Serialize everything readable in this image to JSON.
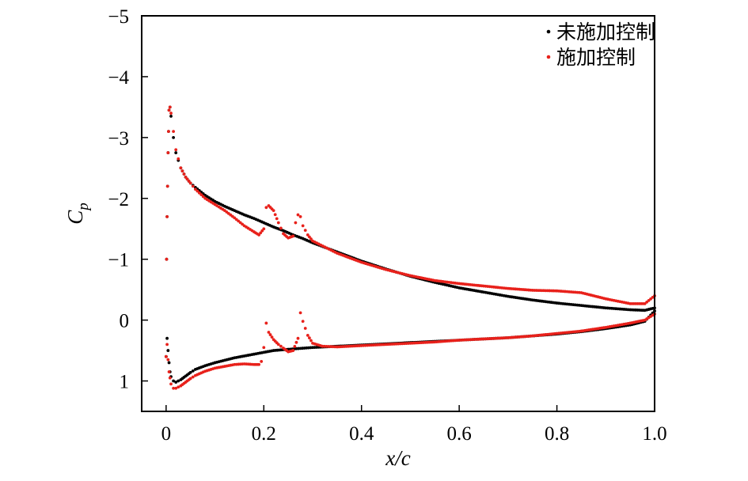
{
  "chart_data": {
    "type": "scatter",
    "title": "",
    "xlabel": "x/c",
    "ylabel_main": "C",
    "ylabel_sub": "p",
    "xlim": [
      -0.05,
      1.0
    ],
    "ylim": [
      1.5,
      -5
    ],
    "y_inverted": true,
    "grid": false,
    "legend_position": "top-right",
    "x_ticks": [
      0,
      0.2,
      0.4,
      0.6,
      0.8,
      1.0
    ],
    "x_tick_labels": [
      "0",
      "0.2",
      "0.4",
      "0.6",
      "0.8",
      "1.0"
    ],
    "y_ticks": [
      -5,
      -4,
      -3,
      -2,
      -1,
      0,
      1
    ],
    "y_tick_labels": [
      "−5",
      "−4",
      "−3",
      "−2",
      "−1",
      "0",
      "1"
    ],
    "series": [
      {
        "name": "未施加控制",
        "color": "#000000",
        "upper": {
          "x": [
            0.0,
            0.001,
            0.002,
            0.003,
            0.004,
            0.005,
            0.006,
            0.008,
            0.01,
            0.015,
            0.02,
            0.03,
            0.04,
            0.05,
            0.06,
            0.08,
            0.1,
            0.12,
            0.14,
            0.16,
            0.18,
            0.2,
            0.22,
            0.24,
            0.26,
            0.28,
            0.3,
            0.35,
            0.4,
            0.45,
            0.5,
            0.55,
            0.6,
            0.65,
            0.7,
            0.75,
            0.8,
            0.85,
            0.9,
            0.95,
            0.98,
            1.0
          ],
          "y": [
            0.6,
            -1.0,
            -1.7,
            -2.2,
            -2.75,
            -3.1,
            -3.45,
            -3.5,
            -3.35,
            -3.0,
            -2.75,
            -2.5,
            -2.35,
            -2.25,
            -2.18,
            -2.05,
            -1.95,
            -1.87,
            -1.8,
            -1.73,
            -1.67,
            -1.6,
            -1.53,
            -1.47,
            -1.4,
            -1.34,
            -1.27,
            -1.12,
            -0.97,
            -0.84,
            -0.72,
            -0.62,
            -0.53,
            -0.46,
            -0.39,
            -0.33,
            -0.28,
            -0.24,
            -0.2,
            -0.17,
            -0.16,
            -0.2
          ]
        },
        "lower": {
          "x": [
            0.0,
            0.002,
            0.004,
            0.006,
            0.008,
            0.01,
            0.015,
            0.02,
            0.03,
            0.04,
            0.05,
            0.06,
            0.08,
            0.1,
            0.12,
            0.14,
            0.16,
            0.18,
            0.2,
            0.22,
            0.25,
            0.3,
            0.35,
            0.4,
            0.45,
            0.5,
            0.55,
            0.6,
            0.65,
            0.7,
            0.75,
            0.8,
            0.85,
            0.9,
            0.95,
            0.98,
            1.0
          ],
          "y": [
            0.6,
            0.3,
            0.5,
            0.7,
            0.85,
            0.93,
            1.0,
            1.02,
            0.98,
            0.92,
            0.86,
            0.81,
            0.75,
            0.7,
            0.66,
            0.62,
            0.59,
            0.56,
            0.53,
            0.5,
            0.48,
            0.45,
            0.43,
            0.41,
            0.39,
            0.37,
            0.35,
            0.33,
            0.31,
            0.29,
            0.26,
            0.23,
            0.19,
            0.14,
            0.08,
            0.02,
            -0.15
          ]
        }
      },
      {
        "name": "施加控制",
        "color": "#e8211b",
        "upper": {
          "x": [
            0.0,
            0.001,
            0.002,
            0.003,
            0.004,
            0.005,
            0.006,
            0.008,
            0.01,
            0.015,
            0.02,
            0.03,
            0.04,
            0.05,
            0.06,
            0.08,
            0.1,
            0.12,
            0.14,
            0.16,
            0.18,
            0.19,
            0.2,
            0.205,
            0.21,
            0.22,
            0.23,
            0.24,
            0.25,
            0.26,
            0.265,
            0.27,
            0.275,
            0.28,
            0.29,
            0.3,
            0.35,
            0.4,
            0.45,
            0.5,
            0.55,
            0.6,
            0.65,
            0.7,
            0.75,
            0.8,
            0.85,
            0.9,
            0.95,
            0.98,
            1.0
          ],
          "y": [
            0.6,
            -1.0,
            -1.7,
            -2.2,
            -2.75,
            -3.1,
            -3.45,
            -3.5,
            -3.4,
            -3.1,
            -2.8,
            -2.5,
            -2.35,
            -2.25,
            -2.15,
            -2.0,
            -1.9,
            -1.8,
            -1.68,
            -1.55,
            -1.45,
            -1.4,
            -1.5,
            -1.85,
            -1.88,
            -1.8,
            -1.6,
            -1.42,
            -1.35,
            -1.38,
            -1.6,
            -1.73,
            -1.7,
            -1.55,
            -1.4,
            -1.3,
            -1.1,
            -0.95,
            -0.83,
            -0.73,
            -0.65,
            -0.6,
            -0.56,
            -0.52,
            -0.49,
            -0.48,
            -0.45,
            -0.35,
            -0.27,
            -0.27,
            -0.4
          ]
        },
        "lower": {
          "x": [
            0.0,
            0.002,
            0.004,
            0.006,
            0.008,
            0.01,
            0.015,
            0.02,
            0.03,
            0.04,
            0.05,
            0.06,
            0.08,
            0.1,
            0.12,
            0.14,
            0.16,
            0.18,
            0.19,
            0.195,
            0.2,
            0.205,
            0.21,
            0.22,
            0.23,
            0.24,
            0.25,
            0.26,
            0.27,
            0.275,
            0.28,
            0.29,
            0.3,
            0.32,
            0.35,
            0.4,
            0.45,
            0.5,
            0.55,
            0.6,
            0.65,
            0.7,
            0.75,
            0.8,
            0.85,
            0.9,
            0.95,
            0.98,
            1.0
          ],
          "y": [
            0.6,
            0.4,
            0.65,
            0.85,
            0.95,
            1.05,
            1.12,
            1.12,
            1.08,
            1.02,
            0.96,
            0.91,
            0.84,
            0.79,
            0.76,
            0.73,
            0.72,
            0.73,
            0.73,
            0.68,
            0.45,
            0.05,
            0.2,
            0.32,
            0.4,
            0.46,
            0.52,
            0.5,
            0.3,
            -0.12,
            0.02,
            0.25,
            0.38,
            0.43,
            0.44,
            0.42,
            0.4,
            0.38,
            0.36,
            0.33,
            0.31,
            0.29,
            0.26,
            0.22,
            0.18,
            0.12,
            0.05,
            0.0,
            -0.1
          ]
        }
      }
    ]
  }
}
